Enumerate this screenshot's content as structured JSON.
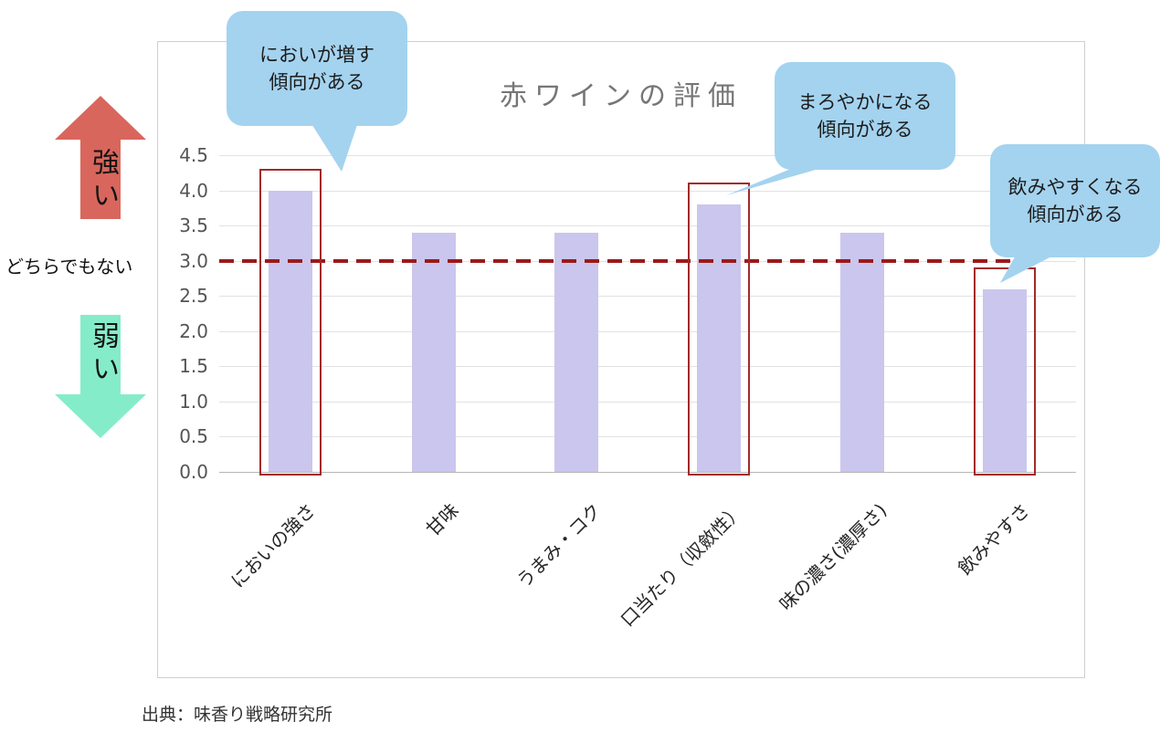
{
  "chart_data": {
    "type": "bar",
    "title": "赤ワインの評価",
    "categories": [
      "においの強さ",
      "甘味",
      "うまみ・コク",
      "口当たり（収斂性）",
      "味の濃さ(濃厚さ)",
      "飲みやすさ"
    ],
    "values": [
      4.0,
      3.4,
      3.4,
      3.8,
      3.4,
      2.6
    ],
    "ylim": [
      0,
      4.5
    ],
    "yticks": [
      "4.5",
      "4.0",
      "3.5",
      "3.0",
      "2.5",
      "2.0",
      "1.5",
      "1.0",
      "0.5",
      "0.0"
    ],
    "grid": true,
    "legend": false,
    "reference_line": {
      "value": 3.0,
      "style": "dashed",
      "label": "どちらでもない"
    },
    "highlighted_bars": [
      0,
      3,
      5
    ]
  },
  "annotations": {
    "strong_label": "強い",
    "neutral_label": "どちらでもない",
    "weak_label": "弱い",
    "callouts": [
      {
        "text": "においが増す\n傾向がある",
        "target": "においの強さ"
      },
      {
        "text": "まろやかになる\n傾向がある",
        "target": "口当たり（収斂性）"
      },
      {
        "text": "飲みやすくなる\n傾向がある",
        "target": "飲みやすさ"
      }
    ]
  },
  "colors": {
    "bar": "#cbc6ed",
    "callout_bubble": "#a4d3ef",
    "strong_arrow": "#d9665c",
    "weak_arrow": "#85ecca",
    "reference_line": "#9a1a1a",
    "highlight_box": "#a32a2a",
    "title_text": "#767676"
  },
  "source": {
    "text": "出典：味香り戦略研究所"
  }
}
